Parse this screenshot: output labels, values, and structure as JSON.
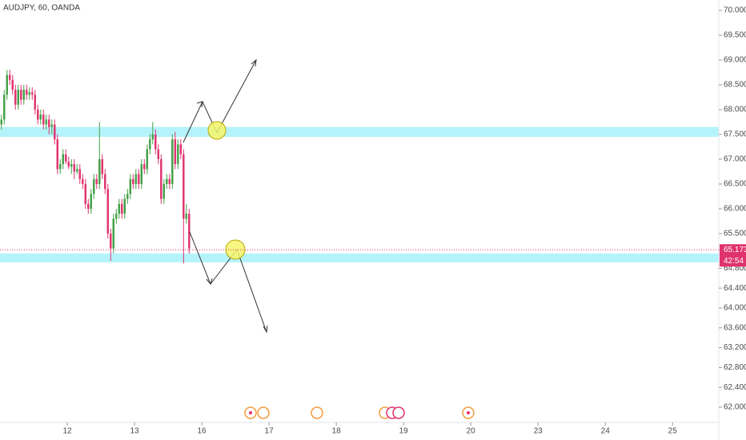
{
  "chart_data": {
    "type": "candlestick",
    "title": "AUDJPY, 60, OANDA",
    "up_color": "#43a047",
    "down_color": "#e0336d",
    "grid": false,
    "open": [
      67.7,
      67.8,
      68.3,
      68.7,
      68.6,
      68.4,
      68.1,
      68.4,
      68.2,
      68.4,
      68.3,
      68.35,
      68.3,
      68.0,
      67.8,
      67.9,
      67.7,
      67.8,
      67.65,
      67.7,
      67.4,
      66.8,
      66.9,
      67.1,
      66.95,
      66.85,
      66.9,
      66.75,
      66.8,
      66.6,
      66.5,
      66.1,
      66.0,
      66.3,
      66.6,
      66.5,
      67.0,
      66.7,
      66.4,
      65.5,
      65.2,
      65.8,
      65.9,
      66.1,
      65.9,
      66.2,
      66.3,
      66.6,
      66.5,
      66.7,
      66.5,
      66.9,
      66.8,
      67.2,
      67.4,
      67.5,
      67.2,
      67.0,
      66.2,
      66.5,
      66.6,
      66.5,
      67.4,
      66.9,
      67.3,
      67.1,
      65.8,
      65.9
    ],
    "high": [
      67.9,
      68.4,
      68.8,
      68.8,
      68.7,
      68.5,
      68.5,
      68.5,
      68.5,
      68.5,
      68.45,
      68.45,
      68.4,
      68.1,
      68.0,
      68.0,
      67.9,
      67.9,
      67.8,
      67.8,
      67.5,
      67.0,
      67.2,
      67.2,
      67.05,
      67.0,
      67.0,
      66.9,
      66.9,
      66.7,
      66.6,
      66.2,
      66.4,
      66.7,
      66.7,
      67.75,
      67.1,
      66.8,
      66.5,
      65.6,
      65.9,
      66.0,
      66.2,
      66.2,
      66.3,
      66.4,
      66.7,
      66.7,
      66.8,
      66.8,
      67.0,
      67.0,
      67.3,
      67.5,
      67.75,
      67.6,
      67.3,
      67.1,
      66.6,
      66.7,
      66.7,
      67.5,
      67.55,
      67.4,
      67.4,
      67.2,
      66.1,
      66.0
    ],
    "low": [
      67.6,
      67.7,
      68.2,
      68.5,
      68.3,
      68.0,
      68.0,
      68.1,
      68.1,
      68.2,
      68.2,
      68.2,
      67.9,
      67.7,
      67.7,
      67.6,
      67.6,
      67.5,
      67.5,
      67.3,
      66.7,
      66.7,
      66.8,
      66.9,
      66.8,
      66.7,
      66.6,
      66.7,
      66.5,
      66.4,
      66.0,
      65.9,
      65.9,
      66.2,
      66.4,
      66.4,
      66.6,
      66.3,
      65.4,
      64.95,
      65.1,
      65.7,
      65.8,
      65.8,
      65.8,
      66.1,
      66.2,
      66.4,
      66.4,
      66.4,
      66.4,
      66.7,
      66.7,
      67.1,
      67.3,
      67.1,
      66.9,
      66.1,
      66.1,
      66.4,
      66.4,
      66.4,
      66.8,
      66.8,
      67.0,
      64.9,
      65.7,
      65.1
    ],
    "close": [
      67.8,
      68.3,
      68.7,
      68.6,
      68.4,
      68.1,
      68.4,
      68.2,
      68.4,
      68.3,
      68.35,
      68.3,
      68.0,
      67.8,
      67.9,
      67.7,
      67.8,
      67.65,
      67.7,
      67.4,
      66.8,
      66.9,
      67.1,
      66.95,
      66.85,
      66.9,
      66.75,
      66.8,
      66.6,
      66.5,
      66.1,
      66.0,
      66.3,
      66.6,
      66.5,
      67.0,
      66.7,
      66.4,
      65.5,
      65.2,
      65.8,
      65.9,
      66.1,
      65.9,
      66.2,
      66.3,
      66.6,
      66.5,
      66.7,
      66.5,
      66.9,
      66.8,
      67.2,
      67.4,
      67.5,
      67.2,
      67.0,
      66.2,
      66.5,
      66.6,
      66.5,
      67.4,
      66.9,
      67.3,
      67.1,
      65.8,
      65.9,
      65.2
    ],
    "xlim": [
      -0.5,
      256
    ],
    "xticks": [
      {
        "value": 23.5,
        "label": "12"
      },
      {
        "value": 47.5,
        "label": "13"
      },
      {
        "value": 71.5,
        "label": "16"
      },
      {
        "value": 95.5,
        "label": "17"
      },
      {
        "value": 119.5,
        "label": "18"
      },
      {
        "value": 143.5,
        "label": "19"
      },
      {
        "value": 167.5,
        "label": "20"
      },
      {
        "value": 191.5,
        "label": "23"
      },
      {
        "value": 215.5,
        "label": "24"
      },
      {
        "value": 239.5,
        "label": "25"
      }
    ],
    "ylim": [
      61.79,
      70.21
    ],
    "yticks": [
      {
        "value": 70,
        "label": "70.000"
      },
      {
        "value": 69.5,
        "label": "69.500"
      },
      {
        "value": 69,
        "label": "69.000"
      },
      {
        "value": 68.5,
        "label": "68.500"
      },
      {
        "value": 68,
        "label": "68.000"
      },
      {
        "value": 67.5,
        "label": "67.500"
      },
      {
        "value": 67,
        "label": "67.000"
      },
      {
        "value": 66.5,
        "label": "66.500"
      },
      {
        "value": 66,
        "label": "66.000"
      },
      {
        "value": 65.5,
        "label": "65.500"
      },
      {
        "value": 64.8,
        "label": "64.800"
      },
      {
        "value": 64.4,
        "label": "64.400"
      },
      {
        "value": 64,
        "label": "64.000"
      },
      {
        "value": 63.6,
        "label": "63.600"
      },
      {
        "value": 63.2,
        "label": "63.200"
      },
      {
        "value": 62.8,
        "label": "62.800"
      },
      {
        "value": 62.4,
        "label": "62.400"
      },
      {
        "value": 62,
        "label": "62.000"
      }
    ],
    "zones": [
      [
        67.45,
        67.65
      ],
      [
        64.92,
        65.1
      ]
    ],
    "zone_color": "#b5f3fb",
    "last_price": 65.173,
    "countdown": "42:54",
    "last_color": "#e0336d"
  }
}
